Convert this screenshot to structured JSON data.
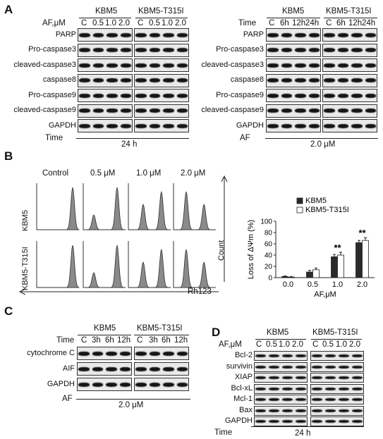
{
  "panels": {
    "A": "A",
    "B": "B",
    "C": "C",
    "D": "D"
  },
  "panelA_left": {
    "group1": "KBM5",
    "group2": "KBM5-T315I",
    "header_label": "AF,μM",
    "lanes": [
      "C",
      "0.5",
      "1.0",
      "2.0",
      "C",
      "0.5",
      "1.0",
      "2.0"
    ],
    "rows": [
      "PARP",
      "Pro-caspase3",
      "cleaved-caspase3",
      "caspase8",
      "Pro-caspase9",
      "cleaved-caspase9",
      "GAPDH"
    ],
    "footer_label": "Time",
    "footer_value": "24 h"
  },
  "panelA_right": {
    "group1": "KBM5",
    "group2": "KBM5-T315I",
    "header_label": "Time",
    "lanes": [
      "C",
      "6h",
      "12h",
      "24h",
      "C",
      "6h",
      "12h",
      "24h"
    ],
    "rows": [
      "PARP",
      "Pro-caspase3",
      "cleaved-caspase3",
      "caspase8",
      "Pro-caspase9",
      "cleaved-caspase9",
      "GAPDH"
    ],
    "footer_label": "AF",
    "footer_value": "2.0 μM"
  },
  "panelB": {
    "columns": [
      "Control",
      "0.5 μM",
      "1.0 μM",
      "2.0 μM"
    ],
    "rows": [
      "KBM5",
      "KBM5-T315I"
    ],
    "count_label": "Count",
    "rh_label": "Rh123"
  },
  "chart_data": {
    "type": "bar",
    "categories": [
      "0.0",
      "0.5",
      "1.0",
      "2.0"
    ],
    "series": [
      {
        "name": "KBM5",
        "values": [
          2,
          10,
          37,
          62
        ],
        "errors": [
          1,
          3,
          4,
          4
        ],
        "color": "#2a2a2a"
      },
      {
        "name": "KBM5-T315I",
        "values": [
          1,
          14,
          40,
          66
        ],
        "errors": [
          1,
          3,
          5,
          5
        ],
        "color": "#ffffff"
      }
    ],
    "ylabel": "Loss of ΔΨm (%)",
    "xlabel": "AF,μM",
    "ylim": [
      0,
      100
    ],
    "yticks": [
      "0",
      "20",
      "40",
      "60",
      "80",
      "100"
    ],
    "significance": [
      "",
      "",
      "**",
      "**"
    ],
    "legend_position": "top-right"
  },
  "panelC": {
    "group1": "KBM5",
    "group2": "KBM5-T315I",
    "header_label": "Time",
    "lanes": [
      "C",
      "3h",
      "6h",
      "12h",
      "C",
      "3h",
      "6h",
      "12h"
    ],
    "rows": [
      "cytochrome C",
      "AIF",
      "GAPDH"
    ],
    "footer_label": "AF",
    "footer_value": "2.0 μM"
  },
  "panelD": {
    "group1": "KBM5",
    "group2": "KBM5-T315I",
    "header_label": "AF,μM",
    "lanes": [
      "C",
      "0.5",
      "1.0",
      "2.0",
      "C",
      "0.5",
      "1.0",
      "2.0"
    ],
    "rows": [
      "Bcl-2",
      "survivin",
      "XIAP",
      "Bcl-xL",
      "Mcl-1",
      "Bax",
      "GAPDH"
    ],
    "footer_label": "Time",
    "footer_value": "24 h"
  }
}
